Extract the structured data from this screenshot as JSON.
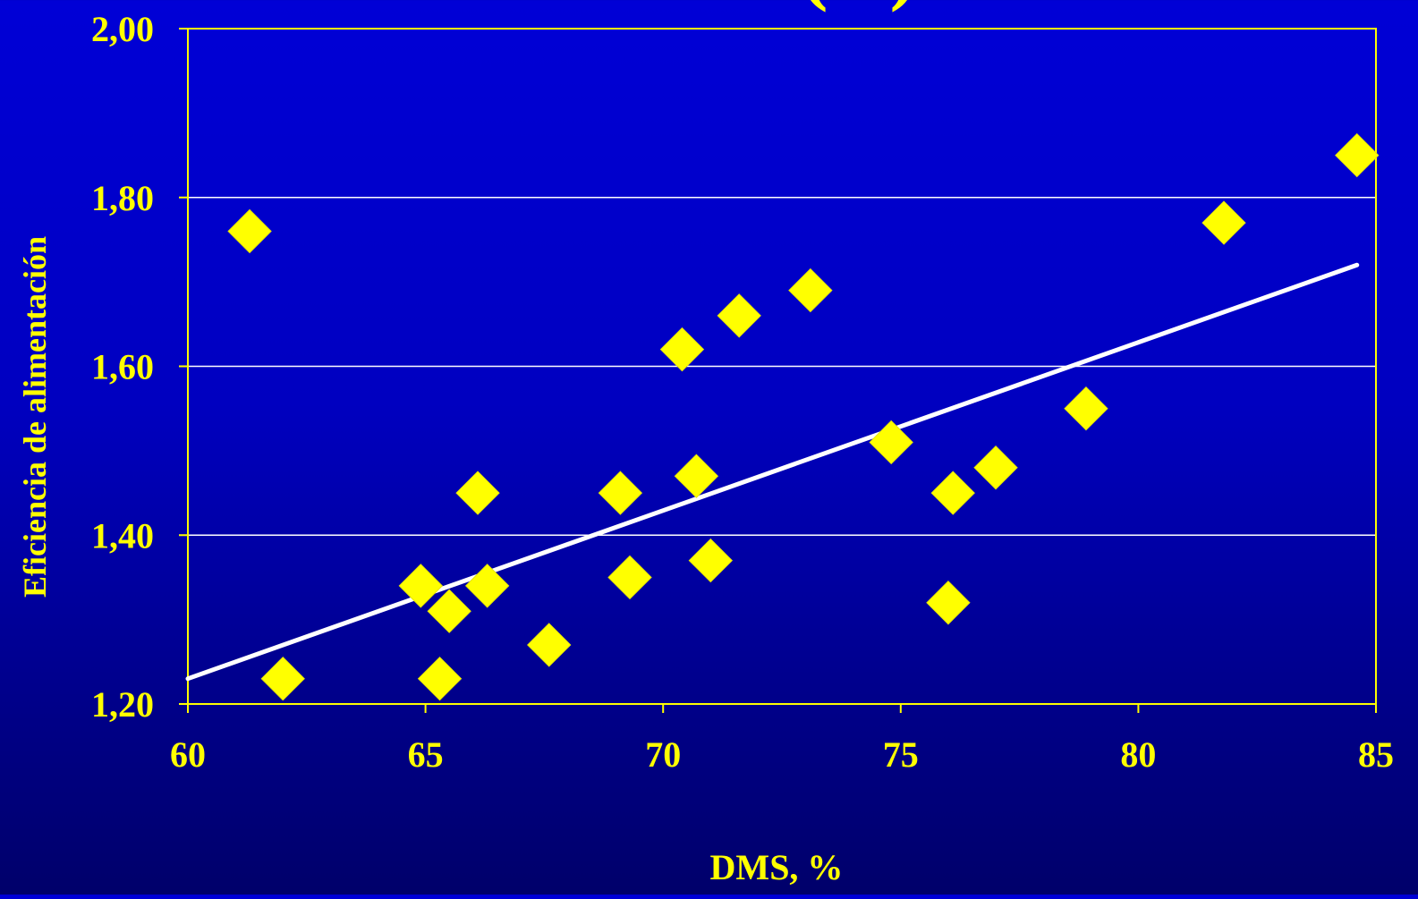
{
  "chart_data": {
    "type": "scatter",
    "title_fragment": "(...)",
    "xlabel": "DMS, %",
    "ylabel": "Eficiencia de alimentación",
    "xlim": [
      60,
      85
    ],
    "ylim": [
      1.2,
      2.0
    ],
    "x_ticks": [
      {
        "value": 60,
        "label": "60"
      },
      {
        "value": 65,
        "label": "65"
      },
      {
        "value": 70,
        "label": "70"
      },
      {
        "value": 75,
        "label": "75"
      },
      {
        "value": 80,
        "label": "80"
      },
      {
        "value": 85,
        "label": "85"
      }
    ],
    "y_ticks": [
      {
        "value": 1.2,
        "label": "1,20"
      },
      {
        "value": 1.4,
        "label": "1,40"
      },
      {
        "value": 1.6,
        "label": "1,60"
      },
      {
        "value": 1.8,
        "label": "1,80"
      },
      {
        "value": 2.0,
        "label": "2,00"
      }
    ],
    "grid": "horizontal",
    "points": [
      {
        "x": 61.3,
        "y": 1.76
      },
      {
        "x": 62.0,
        "y": 1.23
      },
      {
        "x": 64.9,
        "y": 1.34
      },
      {
        "x": 65.3,
        "y": 1.23
      },
      {
        "x": 65.5,
        "y": 1.31
      },
      {
        "x": 66.1,
        "y": 1.45
      },
      {
        "x": 66.3,
        "y": 1.34
      },
      {
        "x": 67.6,
        "y": 1.27
      },
      {
        "x": 69.1,
        "y": 1.45
      },
      {
        "x": 69.3,
        "y": 1.35
      },
      {
        "x": 70.4,
        "y": 1.62
      },
      {
        "x": 70.7,
        "y": 1.47
      },
      {
        "x": 71.0,
        "y": 1.37
      },
      {
        "x": 71.6,
        "y": 1.66
      },
      {
        "x": 73.1,
        "y": 1.69
      },
      {
        "x": 74.8,
        "y": 1.51
      },
      {
        "x": 76.0,
        "y": 1.32
      },
      {
        "x": 76.1,
        "y": 1.45
      },
      {
        "x": 77.0,
        "y": 1.48
      },
      {
        "x": 78.9,
        "y": 1.55
      },
      {
        "x": 81.8,
        "y": 1.77
      },
      {
        "x": 84.6,
        "y": 1.85
      }
    ],
    "trendline": {
      "x": [
        60,
        84.6
      ],
      "y": [
        1.23,
        1.72
      ]
    },
    "colors": {
      "marker": "#ffff00",
      "trendline": "#ffffff",
      "axis": "#ffff00",
      "grid": "#ffffff",
      "text": "#ffff00"
    }
  }
}
